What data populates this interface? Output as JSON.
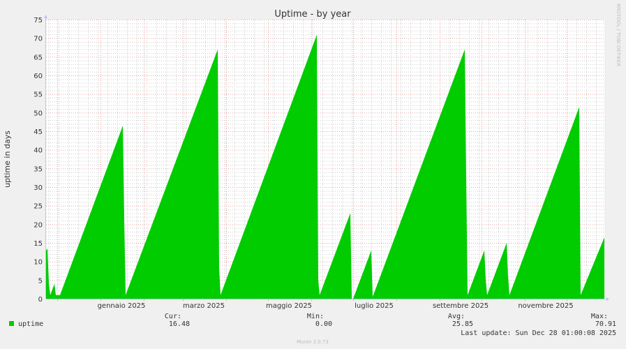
{
  "chart_data": {
    "type": "area",
    "title": "Uptime - by year",
    "ylabel": "uptime in days",
    "xlabel": "",
    "ylim": [
      0,
      75
    ],
    "y_ticks": [
      0,
      5,
      10,
      15,
      20,
      25,
      30,
      35,
      40,
      45,
      50,
      55,
      60,
      65,
      70,
      75
    ],
    "xlim": [
      "2024-11-23",
      "2025-12-28"
    ],
    "x_tick_labels": [
      {
        "date": "2025-01-01",
        "label": "gennaio 2025"
      },
      {
        "date": "2025-03-01",
        "label": "marzo 2025"
      },
      {
        "date": "2025-05-01",
        "label": "maggio 2025"
      },
      {
        "date": "2025-07-01",
        "label": "luglio 2025"
      },
      {
        "date": "2025-09-01",
        "label": "settembre 2025"
      },
      {
        "date": "2025-11-01",
        "label": "novembre 2025"
      }
    ],
    "grid": true,
    "series": [
      {
        "name": "uptime",
        "color": "#00cc00",
        "points": [
          [
            "2024-11-23",
            13
          ],
          [
            "2024-11-24",
            13.5
          ],
          [
            "2024-11-25",
            4
          ],
          [
            "2024-11-26",
            1
          ],
          [
            "2024-11-29",
            4
          ],
          [
            "2024-11-30",
            1
          ],
          [
            "2024-12-03",
            1
          ],
          [
            "2025-01-17",
            46.5
          ],
          [
            "2025-01-18",
            21.5
          ],
          [
            "2025-01-19",
            1
          ],
          [
            "2025-03-26",
            67
          ],
          [
            "2025-03-27",
            8.5
          ],
          [
            "2025-03-28",
            1
          ],
          [
            "2025-06-05",
            70.91
          ],
          [
            "2025-06-06",
            5
          ],
          [
            "2025-06-07",
            1
          ],
          [
            "2025-06-29",
            23
          ],
          [
            "2025-06-30",
            0
          ],
          [
            "2025-07-01",
            0
          ],
          [
            "2025-07-14",
            13
          ],
          [
            "2025-07-15",
            0.5
          ],
          [
            "2025-09-19",
            67
          ],
          [
            "2025-09-20",
            33
          ],
          [
            "2025-09-21",
            1
          ],
          [
            "2025-10-03",
            13
          ],
          [
            "2025-10-04",
            5
          ],
          [
            "2025-10-05",
            1
          ],
          [
            "2025-10-19",
            15
          ],
          [
            "2025-10-20",
            6
          ],
          [
            "2025-10-21",
            1
          ],
          [
            "2025-12-10",
            51.5
          ],
          [
            "2025-12-11",
            1
          ],
          [
            "2025-12-28",
            16.48
          ]
        ]
      }
    ]
  },
  "legend": {
    "series_name": "uptime",
    "cur_label": "Cur:",
    "cur": "16.48",
    "min_label": "Min:",
    "min": "0.00",
    "avg_label": "Avg:",
    "avg": "25.85",
    "max_label": "Max:",
    "max": "70.91",
    "last_update": "Last update: Sun Dec 28 01:00:08 2025"
  },
  "watermark": "RRDTOOL / TOBI OETIKER",
  "footer": "Munin 2.0.73"
}
